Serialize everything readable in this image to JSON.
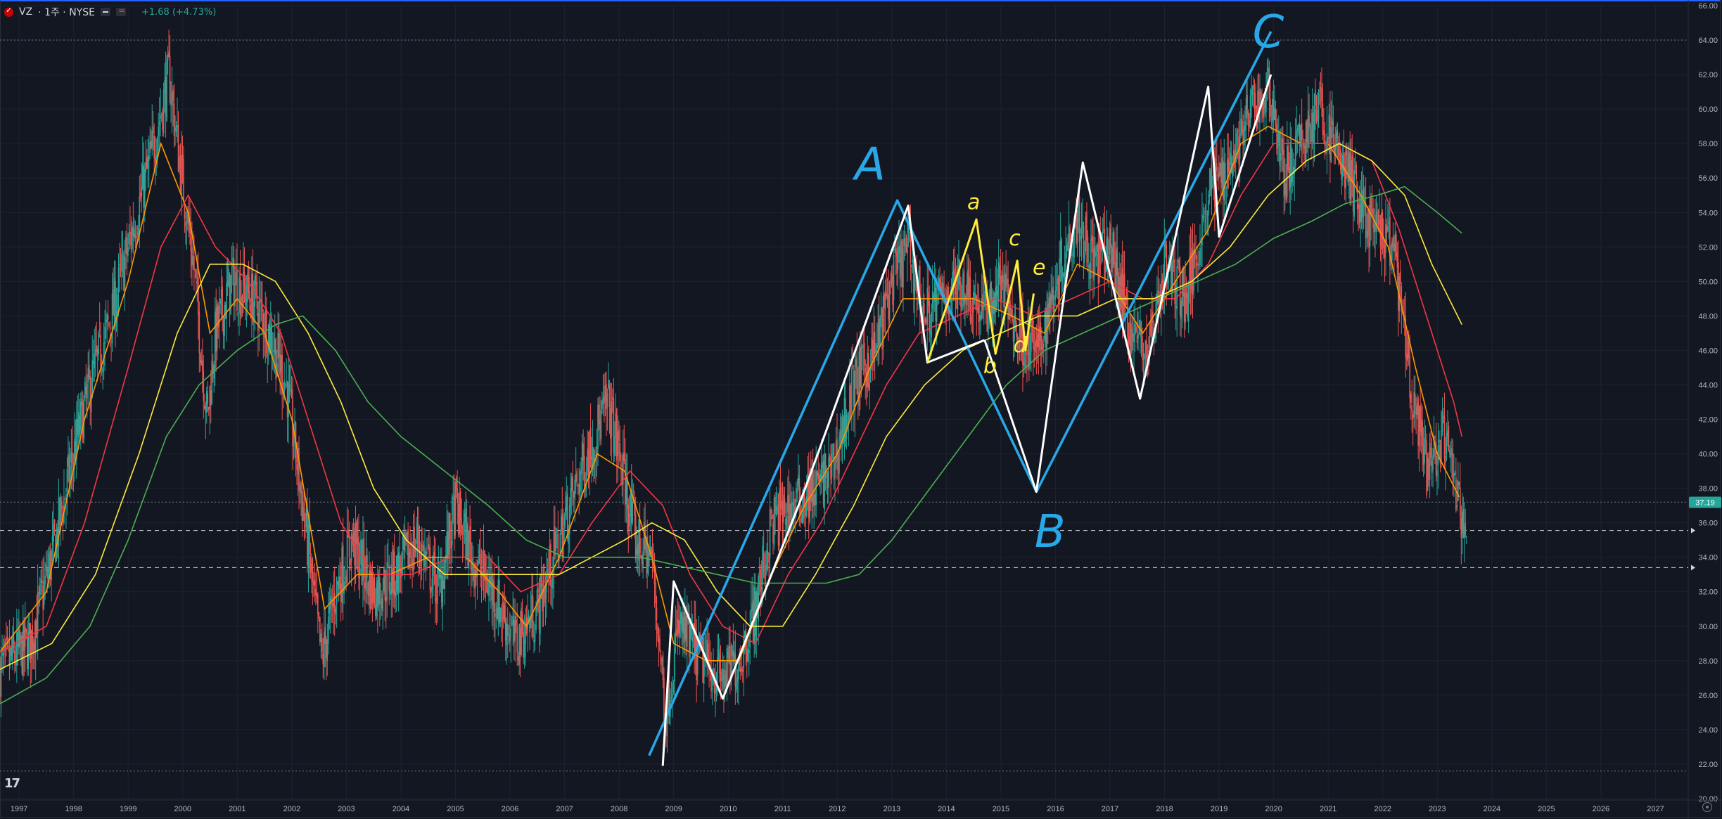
{
  "header": {
    "symbol": "VZ",
    "interval": "· 1주 · NYSE",
    "change": "+1.68 (+4.73%)"
  },
  "colors": {
    "background": "#131722",
    "grid": "#1e222d",
    "up": "#26a69a",
    "down": "#ef5350",
    "ma_fast": "#ff9800",
    "ma_mid": "#f23645",
    "ma_slow": "#ffeb3b",
    "ma_long": "#4caf50",
    "annot_blue": "#29a8e8",
    "annot_white": "#ffffff",
    "annot_yellow": "#ffeb3b"
  },
  "icons": {
    "tradingview_logo": "tradingview-logo-icon",
    "settings": "gear-icon",
    "flag": "flag-icon"
  },
  "chart_data": {
    "type": "candlestick",
    "x_unit": "year",
    "ylim": [
      20,
      66
    ],
    "xlim": [
      1996.65,
      2027.6
    ],
    "grid": true,
    "x_ticks": [
      "1997",
      "1998",
      "1999",
      "2000",
      "2001",
      "2002",
      "2003",
      "2004",
      "2005",
      "2006",
      "2007",
      "2008",
      "2009",
      "2010",
      "2011",
      "2012",
      "2013",
      "2014",
      "2015",
      "2016",
      "2017",
      "2018",
      "2019",
      "2020",
      "2021",
      "2022",
      "2023",
      "2024",
      "2025",
      "2026",
      "2027"
    ],
    "y_ticks": [
      "20.00",
      "22.00",
      "24.00",
      "26.00",
      "28.00",
      "30.00",
      "32.00",
      "34.00",
      "36.00",
      "38.00",
      "40.00",
      "42.00",
      "44.00",
      "46.00",
      "48.00",
      "50.00",
      "52.00",
      "54.00",
      "56.00",
      "58.00",
      "60.00",
      "62.00",
      "64.00",
      "66.00"
    ],
    "last_price": {
      "value": 37.19,
      "label": "37.19"
    },
    "horizontal_lines": [
      {
        "value": 64.0,
        "style": "dotted"
      },
      {
        "value": 37.2,
        "style": "dotted"
      },
      {
        "value": 35.55,
        "style": "dashed"
      },
      {
        "value": 33.4,
        "style": "dashed"
      },
      {
        "value": 21.6,
        "style": "dotted"
      }
    ],
    "price_path": [
      [
        1996.65,
        27.5
      ],
      [
        1997.2,
        29
      ],
      [
        1997.6,
        34
      ],
      [
        1998.0,
        40
      ],
      [
        1998.3,
        44
      ],
      [
        1998.7,
        48
      ],
      [
        1999.0,
        52
      ],
      [
        1999.4,
        57
      ],
      [
        1999.75,
        62
      ],
      [
        1999.9,
        58
      ],
      [
        2000.2,
        51
      ],
      [
        2000.45,
        42
      ],
      [
        2000.6,
        47
      ],
      [
        2000.9,
        50
      ],
      [
        2001.3,
        49
      ],
      [
        2001.6,
        47
      ],
      [
        2001.9,
        44
      ],
      [
        2002.2,
        37
      ],
      [
        2002.55,
        28
      ],
      [
        2002.8,
        32
      ],
      [
        2003.1,
        35
      ],
      [
        2003.5,
        32
      ],
      [
        2003.9,
        33
      ],
      [
        2004.3,
        35
      ],
      [
        2004.7,
        32
      ],
      [
        2005.0,
        37
      ],
      [
        2005.3,
        34
      ],
      [
        2005.7,
        32
      ],
      [
        2006.1,
        29
      ],
      [
        2006.5,
        31
      ],
      [
        2006.9,
        35
      ],
      [
        2007.3,
        39
      ],
      [
        2007.8,
        43
      ],
      [
        2008.0,
        40
      ],
      [
        2008.3,
        35
      ],
      [
        2008.6,
        34
      ],
      [
        2008.85,
        25
      ],
      [
        2009.1,
        30
      ],
      [
        2009.5,
        28
      ],
      [
        2009.9,
        27
      ],
      [
        2010.2,
        28
      ],
      [
        2010.5,
        31
      ],
      [
        2010.8,
        36
      ],
      [
        2011.2,
        37
      ],
      [
        2011.6,
        38
      ],
      [
        2011.9,
        39
      ],
      [
        2012.3,
        44
      ],
      [
        2012.7,
        46
      ],
      [
        2013.0,
        50
      ],
      [
        2013.3,
        52
      ],
      [
        2013.6,
        48
      ],
      [
        2013.9,
        49
      ],
      [
        2014.3,
        50
      ],
      [
        2014.7,
        48
      ],
      [
        2015.0,
        50
      ],
      [
        2015.3,
        47
      ],
      [
        2015.7,
        46
      ],
      [
        2016.0,
        50
      ],
      [
        2016.4,
        54
      ],
      [
        2016.7,
        51
      ],
      [
        2017.0,
        52
      ],
      [
        2017.4,
        47
      ],
      [
        2017.7,
        46
      ],
      [
        2018.0,
        51
      ],
      [
        2018.4,
        49
      ],
      [
        2018.8,
        55
      ],
      [
        2019.2,
        57
      ],
      [
        2019.6,
        60
      ],
      [
        2019.95,
        61
      ],
      [
        2020.2,
        56
      ],
      [
        2020.5,
        58
      ],
      [
        2020.8,
        60
      ],
      [
        2021.1,
        58
      ],
      [
        2021.4,
        56
      ],
      [
        2021.8,
        53
      ],
      [
        2022.2,
        52
      ],
      [
        2022.5,
        44
      ],
      [
        2022.8,
        39
      ],
      [
        2023.1,
        41
      ],
      [
        2023.35,
        38
      ],
      [
        2023.48,
        35.4
      ],
      [
        2023.55,
        37.2
      ]
    ],
    "moving_averages": [
      {
        "color": "#ff9800",
        "points": [
          [
            1996.65,
            28.5
          ],
          [
            1997.5,
            32
          ],
          [
            1998.2,
            42
          ],
          [
            1999.0,
            50
          ],
          [
            1999.6,
            58
          ],
          [
            2000.1,
            54
          ],
          [
            2000.5,
            47
          ],
          [
            2001.0,
            49
          ],
          [
            2001.5,
            47
          ],
          [
            2002.0,
            42
          ],
          [
            2002.6,
            31
          ],
          [
            2003.2,
            33
          ],
          [
            2003.8,
            33
          ],
          [
            2004.5,
            34
          ],
          [
            2005.2,
            34
          ],
          [
            2005.8,
            32
          ],
          [
            2006.3,
            30
          ],
          [
            2006.9,
            34
          ],
          [
            2007.6,
            40
          ],
          [
            2008.1,
            39
          ],
          [
            2008.6,
            34
          ],
          [
            2009.0,
            29
          ],
          [
            2009.6,
            28
          ],
          [
            2010.2,
            28
          ],
          [
            2010.8,
            33
          ],
          [
            2011.4,
            37
          ],
          [
            2012.0,
            40
          ],
          [
            2012.6,
            45
          ],
          [
            2013.2,
            49
          ],
          [
            2013.8,
            49
          ],
          [
            2014.5,
            49
          ],
          [
            2015.2,
            48
          ],
          [
            2015.8,
            47
          ],
          [
            2016.4,
            51
          ],
          [
            2017.0,
            50
          ],
          [
            2017.6,
            47
          ],
          [
            2018.2,
            50
          ],
          [
            2018.8,
            53
          ],
          [
            2019.4,
            58
          ],
          [
            2019.9,
            59
          ],
          [
            2020.5,
            58
          ],
          [
            2021.0,
            58
          ],
          [
            2021.6,
            55
          ],
          [
            2022.1,
            52
          ],
          [
            2022.6,
            45
          ],
          [
            2023.0,
            40
          ],
          [
            2023.4,
            37.5
          ]
        ]
      },
      {
        "color": "#f23645",
        "points": [
          [
            1996.65,
            28.5
          ],
          [
            1997.5,
            30
          ],
          [
            1998.2,
            36
          ],
          [
            1999.0,
            45
          ],
          [
            1999.6,
            52
          ],
          [
            2000.1,
            55
          ],
          [
            2000.6,
            52
          ],
          [
            2001.2,
            50
          ],
          [
            2001.8,
            47
          ],
          [
            2002.3,
            42
          ],
          [
            2002.9,
            36
          ],
          [
            2003.5,
            33
          ],
          [
            2004.2,
            33
          ],
          [
            2004.9,
            34
          ],
          [
            2005.6,
            34
          ],
          [
            2006.2,
            32
          ],
          [
            2006.9,
            33
          ],
          [
            2007.5,
            36
          ],
          [
            2008.2,
            39
          ],
          [
            2008.8,
            37
          ],
          [
            2009.3,
            33
          ],
          [
            2009.9,
            30
          ],
          [
            2010.5,
            29
          ],
          [
            2011.1,
            33
          ],
          [
            2011.7,
            36
          ],
          [
            2012.3,
            40
          ],
          [
            2012.9,
            44
          ],
          [
            2013.5,
            47
          ],
          [
            2014.2,
            48
          ],
          [
            2014.9,
            49
          ],
          [
            2015.6,
            48
          ],
          [
            2016.3,
            49
          ],
          [
            2017.0,
            50
          ],
          [
            2017.6,
            49
          ],
          [
            2018.2,
            49
          ],
          [
            2018.8,
            51
          ],
          [
            2019.4,
            55
          ],
          [
            2020.0,
            58
          ],
          [
            2020.6,
            58
          ],
          [
            2021.2,
            58
          ],
          [
            2021.8,
            57
          ],
          [
            2022.3,
            53
          ],
          [
            2022.8,
            48
          ],
          [
            2023.3,
            43
          ],
          [
            2023.45,
            41
          ]
        ]
      },
      {
        "color": "#ffeb3b",
        "points": [
          [
            1996.65,
            27.5
          ],
          [
            1997.6,
            29
          ],
          [
            1998.4,
            33
          ],
          [
            1999.2,
            40
          ],
          [
            1999.9,
            47
          ],
          [
            2000.5,
            51
          ],
          [
            2001.1,
            51
          ],
          [
            2001.7,
            50
          ],
          [
            2002.3,
            47
          ],
          [
            2002.9,
            43
          ],
          [
            2003.5,
            38
          ],
          [
            2004.1,
            35
          ],
          [
            2004.8,
            33
          ],
          [
            2005.5,
            33
          ],
          [
            2006.2,
            33
          ],
          [
            2006.9,
            33
          ],
          [
            2007.5,
            34
          ],
          [
            2008.1,
            35
          ],
          [
            2008.6,
            36
          ],
          [
            2009.2,
            35
          ],
          [
            2009.8,
            32
          ],
          [
            2010.4,
            30
          ],
          [
            2011.0,
            30
          ],
          [
            2011.6,
            33
          ],
          [
            2012.3,
            37
          ],
          [
            2012.9,
            41
          ],
          [
            2013.6,
            44
          ],
          [
            2014.3,
            46
          ],
          [
            2015.0,
            47
          ],
          [
            2015.7,
            48
          ],
          [
            2016.4,
            48
          ],
          [
            2017.1,
            49
          ],
          [
            2017.8,
            49
          ],
          [
            2018.5,
            50
          ],
          [
            2019.2,
            52
          ],
          [
            2019.9,
            55
          ],
          [
            2020.6,
            57
          ],
          [
            2021.2,
            58
          ],
          [
            2021.8,
            57
          ],
          [
            2022.4,
            55
          ],
          [
            2022.9,
            51
          ],
          [
            2023.45,
            47.5
          ]
        ]
      },
      {
        "color": "#4caf50",
        "points": [
          [
            1996.65,
            25.5
          ],
          [
            1997.5,
            27
          ],
          [
            1998.3,
            30
          ],
          [
            1999.0,
            35
          ],
          [
            1999.7,
            41
          ],
          [
            2000.3,
            44
          ],
          [
            2001.0,
            46
          ],
          [
            2001.7,
            47.5
          ],
          [
            2002.2,
            48
          ],
          [
            2002.8,
            46
          ],
          [
            2003.4,
            43
          ],
          [
            2004.0,
            41
          ],
          [
            2004.8,
            39
          ],
          [
            2005.6,
            37
          ],
          [
            2006.3,
            35
          ],
          [
            2007.0,
            34
          ],
          [
            2007.7,
            34
          ],
          [
            2008.4,
            34
          ],
          [
            2009.1,
            33.5
          ],
          [
            2009.8,
            33
          ],
          [
            2010.5,
            32.5
          ],
          [
            2011.2,
            32.5
          ],
          [
            2011.8,
            32.5
          ],
          [
            2012.4,
            33
          ],
          [
            2013.0,
            35
          ],
          [
            2013.7,
            38
          ],
          [
            2014.4,
            41
          ],
          [
            2015.1,
            44
          ],
          [
            2015.8,
            46
          ],
          [
            2016.5,
            47
          ],
          [
            2017.2,
            48
          ],
          [
            2017.9,
            49
          ],
          [
            2018.6,
            50
          ],
          [
            2019.3,
            51
          ],
          [
            2020.0,
            52.5
          ],
          [
            2020.7,
            53.5
          ],
          [
            2021.3,
            54.5
          ],
          [
            2021.9,
            55
          ],
          [
            2022.4,
            55.5
          ],
          [
            2023.0,
            54
          ],
          [
            2023.45,
            52.8
          ]
        ]
      }
    ],
    "annotations": {
      "blue_lines": [
        [
          [
            2008.55,
            22.5
          ],
          [
            2013.1,
            54.7
          ],
          [
            2015.65,
            37.8
          ],
          [
            2019.95,
            64.5
          ]
        ]
      ],
      "white_lines": [
        [
          [
            2008.8,
            21.9
          ],
          [
            2009.0,
            32.6
          ],
          [
            2009.9,
            25.8
          ],
          [
            2011.4,
            37.9
          ]
        ],
        [
          [
            2011.4,
            37.9
          ],
          [
            2013.3,
            54.4
          ],
          [
            2013.65,
            45.3
          ],
          [
            2014.7,
            46.6
          ]
        ],
        [
          [
            2014.7,
            46.6
          ],
          [
            2015.65,
            37.8
          ],
          [
            2016.5,
            56.9
          ],
          [
            2017.55,
            43.2
          ],
          [
            2018.8,
            61.3
          ],
          [
            2019.0,
            52.6
          ],
          [
            2019.95,
            62.0
          ]
        ]
      ],
      "yellow_lines": [
        [
          [
            2013.65,
            45.3
          ],
          [
            2014.55,
            53.6
          ],
          [
            2014.9,
            45.8
          ],
          [
            2015.3,
            51.2
          ],
          [
            2015.45,
            46.0
          ],
          [
            2015.6,
            49.3
          ]
        ]
      ],
      "labels": [
        {
          "text": "A",
          "x": 2012.6,
          "y": 55.9,
          "color": "#29a8e8"
        },
        {
          "text": "B",
          "x": 2015.9,
          "y": 34.6,
          "color": "#29a8e8"
        },
        {
          "text": "C",
          "x": 2019.9,
          "y": 63.6,
          "color": "#29a8e8"
        },
        {
          "text": "a",
          "x": 2014.5,
          "y": 54.2,
          "color": "#ffeb3b"
        },
        {
          "text": "b",
          "x": 2014.8,
          "y": 44.7,
          "color": "#ffeb3b"
        },
        {
          "text": "c",
          "x": 2015.25,
          "y": 52.1,
          "color": "#ffeb3b"
        },
        {
          "text": "d",
          "x": 2015.35,
          "y": 45.9,
          "color": "#ffeb3b"
        },
        {
          "text": "e",
          "x": 2015.7,
          "y": 50.4,
          "color": "#ffeb3b"
        }
      ]
    }
  }
}
